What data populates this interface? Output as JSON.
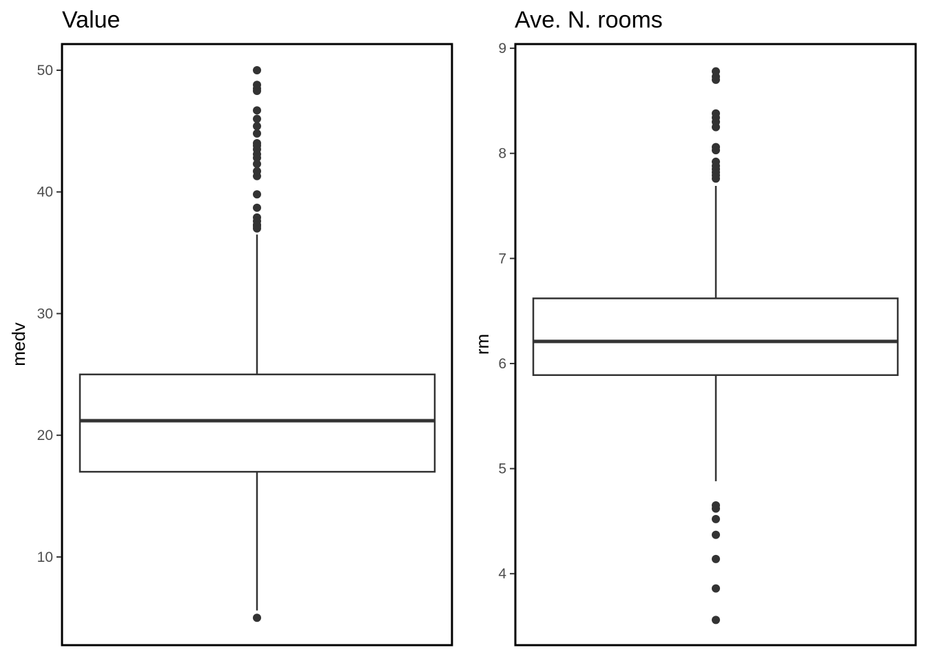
{
  "chart_data": [
    {
      "type": "boxplot",
      "title": "Value",
      "ylabel": "medv",
      "xlabel": "",
      "ylim": [
        2.75,
        52.15
      ],
      "yticks": [
        10,
        20,
        30,
        40,
        50
      ],
      "stats": {
        "lower_whisker": 5.6,
        "q1": 17.0,
        "median": 21.2,
        "q3": 25.0,
        "upper_whisker": 36.5
      },
      "outliers": [
        5.0,
        37.0,
        37.2,
        37.3,
        37.6,
        37.9,
        38.7,
        39.8,
        41.3,
        41.7,
        42.3,
        42.8,
        43.1,
        43.5,
        43.8,
        44.0,
        44.8,
        45.4,
        46.0,
        46.7,
        48.3,
        48.5,
        48.8,
        50.0
      ],
      "grid": false
    },
    {
      "type": "boxplot",
      "title": "Ave. N. rooms",
      "ylabel": "rm",
      "xlabel": "",
      "ylim": [
        3.32,
        9.04
      ],
      "yticks": [
        4,
        5,
        6,
        7,
        8,
        9
      ],
      "stats": {
        "lower_whisker": 4.88,
        "q1": 5.89,
        "median": 6.21,
        "q3": 6.62,
        "upper_whisker": 7.69
      },
      "outliers": [
        3.56,
        3.86,
        4.14,
        4.37,
        4.52,
        4.62,
        4.65,
        7.76,
        7.79,
        7.82,
        7.85,
        7.88,
        7.92,
        8.03,
        8.06,
        8.25,
        8.3,
        8.34,
        8.38,
        8.7,
        8.73,
        8.78
      ],
      "grid": false
    }
  ]
}
